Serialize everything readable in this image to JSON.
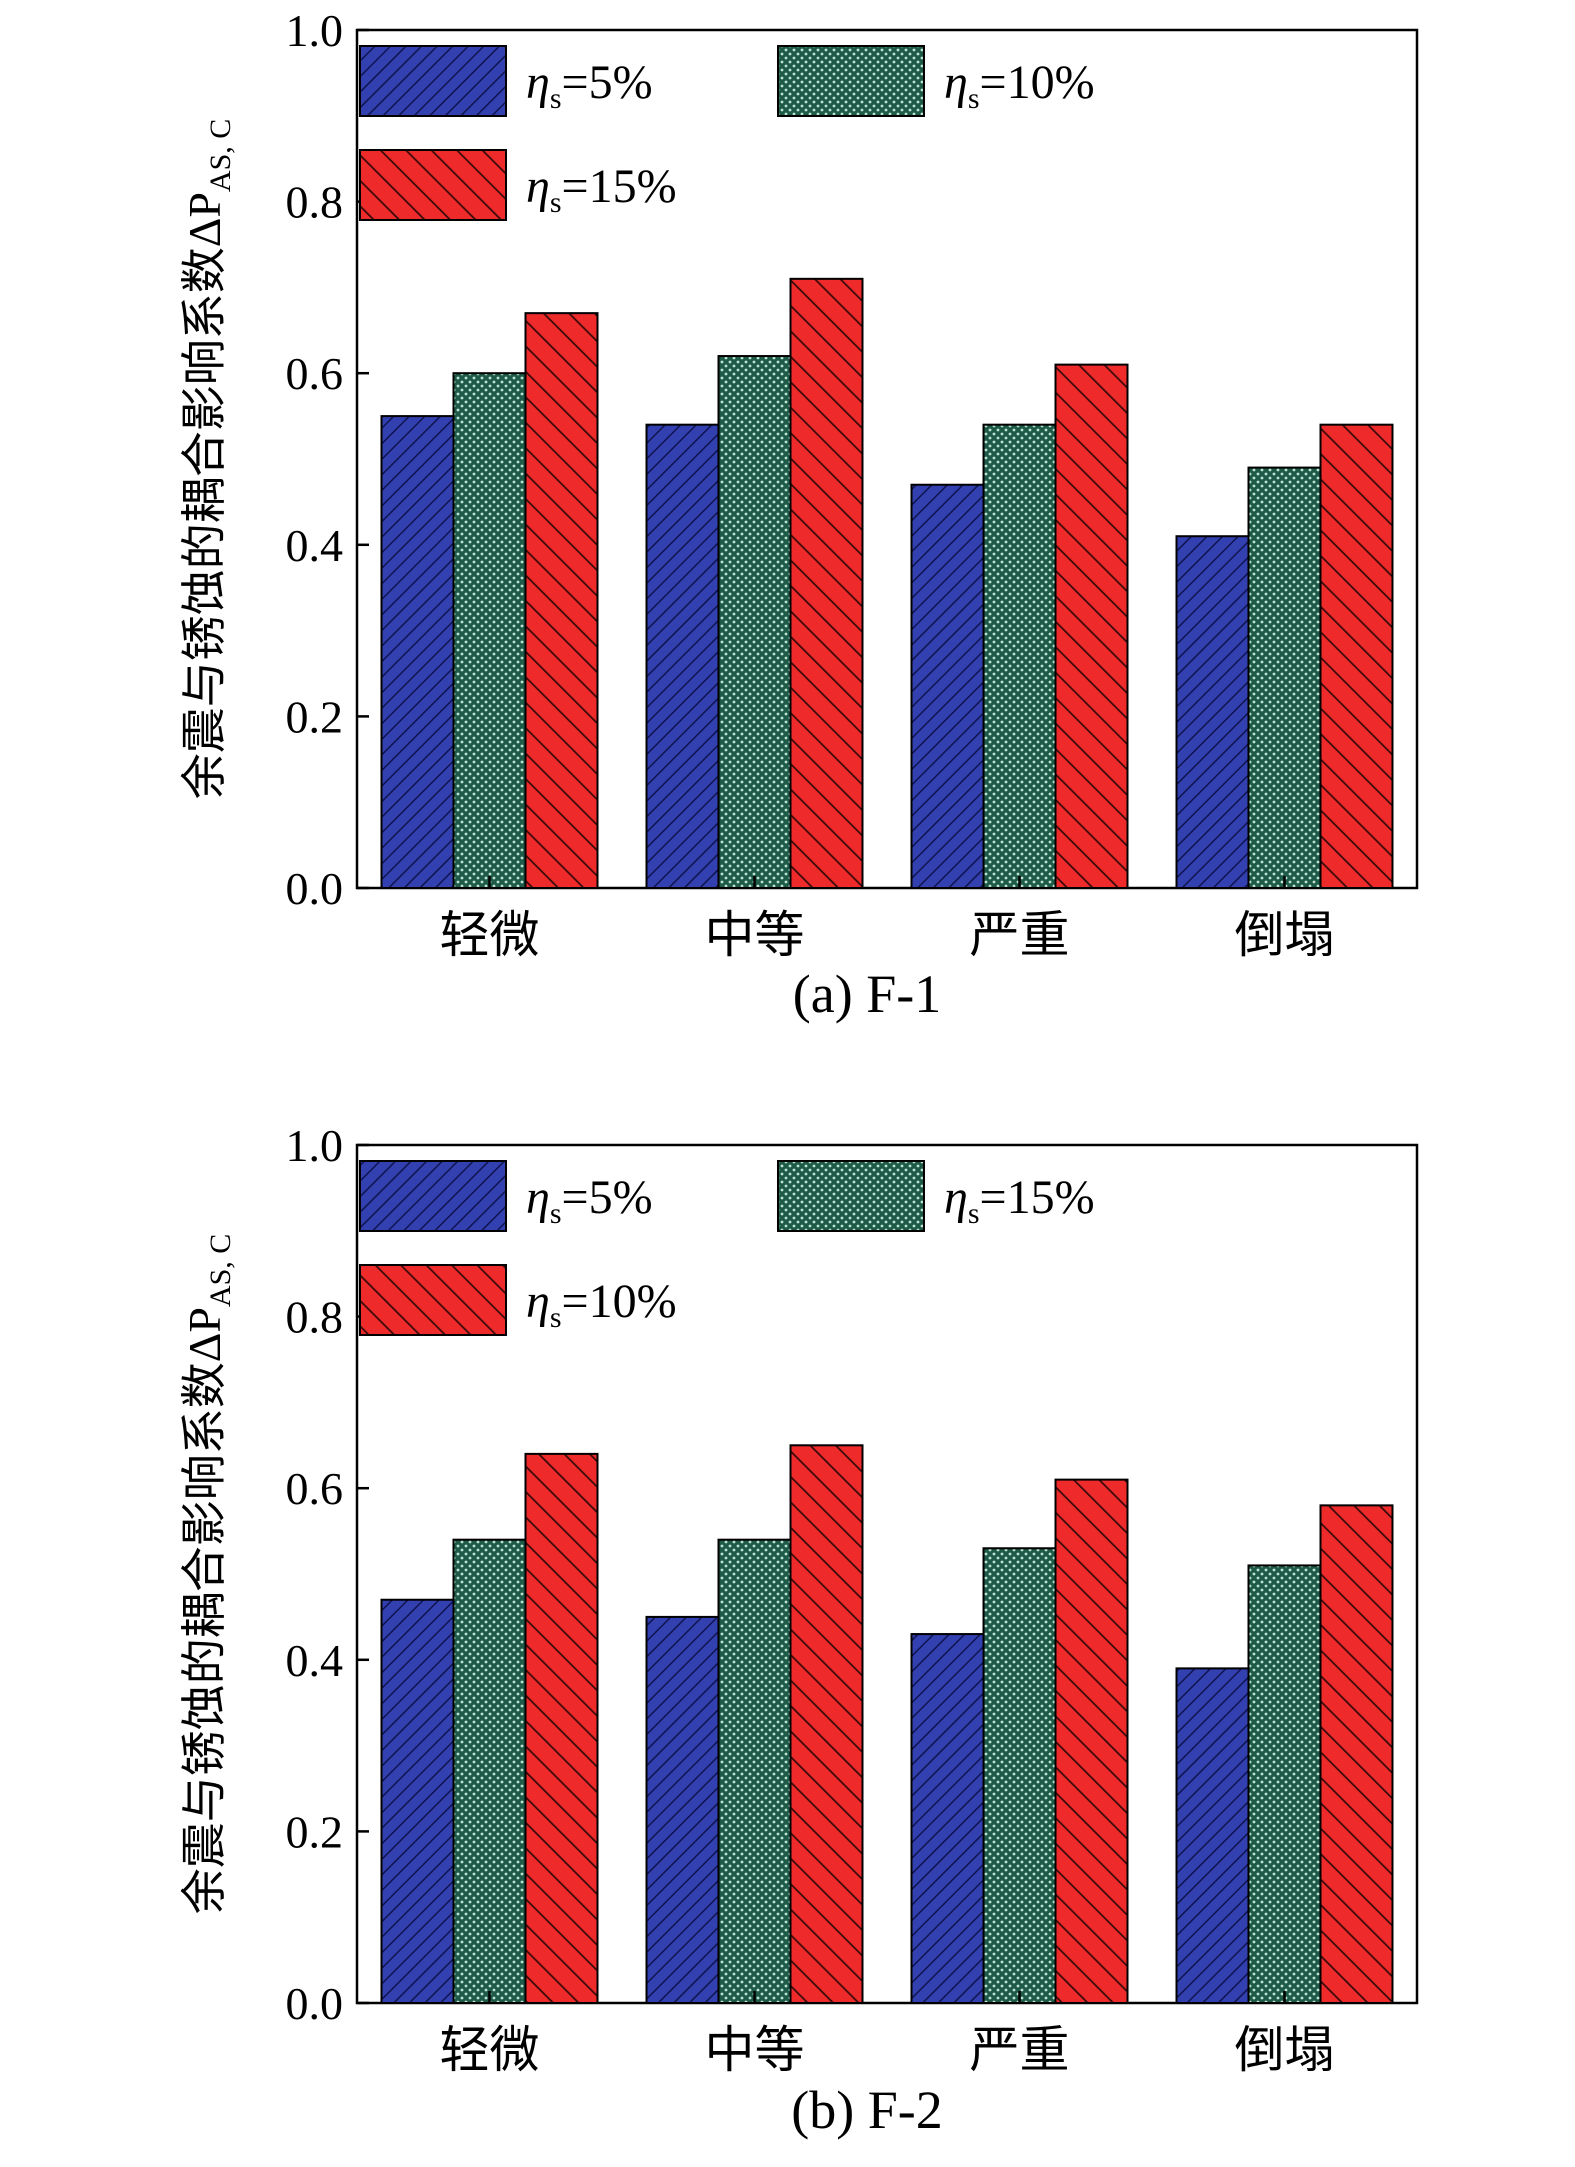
{
  "chart_data": [
    {
      "type": "bar",
      "panel_label": "(a) F-1",
      "ylabel": "余震与锈蚀的耦合影响系数ΔP",
      "ylabel_sub": "AS, C",
      "ylim": [
        0,
        1.0
      ],
      "yticks": [
        "0.0",
        "0.2",
        "0.4",
        "0.6",
        "0.8",
        "1.0"
      ],
      "yticks_values": [
        0,
        0.2,
        0.4,
        0.6,
        0.8,
        1.0
      ],
      "categories": [
        "轻微",
        "中等",
        "严重",
        "倒塌"
      ],
      "legend_placement": "top-left",
      "series": [
        {
          "name": "=5%",
          "symbol": "η",
          "sub": "s",
          "color": "#2f3aa8",
          "pattern": "hatch-blue",
          "values": [
            0.55,
            0.54,
            0.47,
            0.41
          ]
        },
        {
          "name": "=10%",
          "symbol": "η",
          "sub": "s",
          "color": "#1f5c4a",
          "pattern": "dots-green",
          "values": [
            0.6,
            0.62,
            0.54,
            0.49
          ]
        },
        {
          "name": "=15%",
          "symbol": "η",
          "sub": "s",
          "color": "#e8202a",
          "pattern": "hatch-red",
          "values": [
            0.67,
            0.71,
            0.61,
            0.54
          ]
        }
      ]
    },
    {
      "type": "bar",
      "panel_label": "(b) F-2",
      "ylabel": "余震与锈蚀的耦合影响系数ΔP",
      "ylabel_sub": "AS, C",
      "ylim": [
        0,
        1.0
      ],
      "yticks": [
        "0.0",
        "0.2",
        "0.4",
        "0.6",
        "0.8",
        "1.0"
      ],
      "yticks_values": [
        0,
        0.2,
        0.4,
        0.6,
        0.8,
        1.0
      ],
      "categories": [
        "轻微",
        "中等",
        "严重",
        "倒塌"
      ],
      "legend_placement": "top-left",
      "series": [
        {
          "name": "=5%",
          "symbol": "η",
          "sub": "s",
          "color": "#2f3aa8",
          "pattern": "hatch-blue",
          "values": [
            0.47,
            0.45,
            0.43,
            0.39
          ]
        },
        {
          "name": "=15%",
          "symbol": "η",
          "sub": "s",
          "color": "#1f5c4a",
          "pattern": "dots-green",
          "values": [
            0.54,
            0.54,
            0.53,
            0.51
          ]
        },
        {
          "name": "=10%",
          "symbol": "η",
          "sub": "s",
          "color": "#e8202a",
          "pattern": "hatch-red",
          "values": [
            0.64,
            0.65,
            0.61,
            0.58
          ]
        }
      ]
    }
  ]
}
